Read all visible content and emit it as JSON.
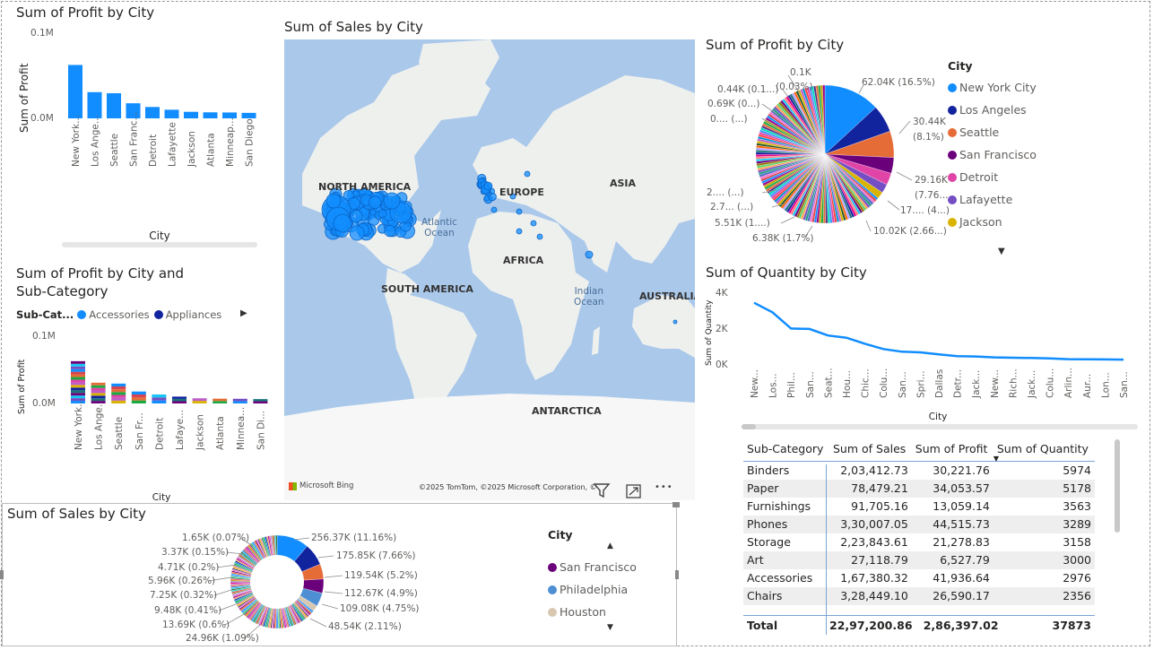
{
  "colors": {
    "accent": "#118dff",
    "navy": "#12239e",
    "orange": "#e66c37",
    "purple": "#6b007b",
    "pink": "#e044a7",
    "violet": "#744ec2",
    "gold": "#d9b300",
    "blue2": "#4e8fd4",
    "beige": "#d8c7b0",
    "map_water": "#aac8ea",
    "map_land": "#eef0ee"
  },
  "v1": {
    "title": "Sum of Profit by City",
    "ylabel": "Sum of Profit",
    "xlabel": "City",
    "ticks": [
      "0.1M",
      "0.0M"
    ]
  },
  "v2": {
    "title": "Sum of Sales by City",
    "labels": [
      "NORTH AMERICA",
      "EUROPE",
      "ASIA",
      "AFRICA",
      "SOUTH AMERICA",
      "ANTARCTICA",
      "AUSTRALIA",
      "Atlantic",
      "Ocean",
      "Indian",
      "Ocean"
    ],
    "bing": "Microsoft Bing",
    "attribution": "©2025 TomTom, ©2025 Microsoft Corporation, ©",
    "more": "•••"
  },
  "v3": {
    "title": "Sum of Profit by City",
    "legend_title": "City",
    "legend": [
      {
        "name": "New York City",
        "color": "#118dff"
      },
      {
        "name": "Los Angeles",
        "color": "#12239e"
      },
      {
        "name": "Seattle",
        "color": "#e66c37"
      },
      {
        "name": "San Francisco",
        "color": "#6b007b"
      },
      {
        "name": "Detroit",
        "color": "#e044a7"
      },
      {
        "name": "Lafayette",
        "color": "#744ec2"
      },
      {
        "name": "Jackson",
        "color": "#d9b300"
      }
    ],
    "labels": [
      "62.04K (16.5%)",
      "30.44K",
      "(8.1%)",
      "29.16K",
      "(7.76...)",
      "17.... (4...)",
      "10.02K (2.66...)",
      "6.38K (1.7%)",
      "5.51K (1....)",
      "2.7... (...)",
      "2.... (...)",
      "0.... (...)",
      "0.69K (0...)",
      "0.44K (0.1...)",
      "(0.03%)",
      "0.1K"
    ]
  },
  "v4": {
    "title": "Sum of Profit by City and Sub-Category",
    "legend_label": "Sub-Cat...",
    "legend": [
      {
        "name": "Accessories",
        "color": "#118dff"
      },
      {
        "name": "Appliances",
        "color": "#12239e"
      }
    ],
    "ylabel": "Sum of Profit",
    "xlabel": "City",
    "ticks": [
      "0.1M",
      "0.0M"
    ]
  },
  "v5": {
    "title": "Sum of Quantity by City",
    "ylabel": "Sum of Quantity",
    "xlabel": "City",
    "ticks": [
      "4K",
      "2K",
      "0K"
    ]
  },
  "v6": {
    "title": "Sum of Sales by City",
    "legend_title": "City",
    "legend": [
      {
        "name": "San Francisco",
        "color": "#6b007b"
      },
      {
        "name": "Philadelphia",
        "color": "#4e8fd4"
      },
      {
        "name": "Houston",
        "color": "#d8c7b0"
      }
    ],
    "labels_right": [
      "256.37K (11.16%)",
      "175.85K (7.66%)",
      "119.54K (5.2%)",
      "112.67K (4.9%)",
      "109.08K (4.75%)",
      "48.54K (2.11%)"
    ],
    "labels_left": [
      "1.65K (0.07%)",
      "3.37K (0.15%)",
      "4.71K (0.2%)",
      "5.96K (0.26%)",
      "7.25K (0.32%)",
      "9.48K (0.41%)",
      "13.69K (0.6%)",
      "24.96K (1.09%)"
    ]
  },
  "matrix": {
    "headers": [
      "Sub-Category",
      "Sum of Sales",
      "Sum of Profit",
      "Sum of Quantity"
    ],
    "rows": [
      [
        "Binders",
        "2,03,412.73",
        "30,221.76",
        "5974"
      ],
      [
        "Paper",
        "78,479.21",
        "34,053.57",
        "5178"
      ],
      [
        "Furnishings",
        "91,705.16",
        "13,059.14",
        "3563"
      ],
      [
        "Phones",
        "3,30,007.05",
        "44,515.73",
        "3289"
      ],
      [
        "Storage",
        "2,23,843.61",
        "21,278.83",
        "3158"
      ],
      [
        "Art",
        "27,118.79",
        "6,527.79",
        "3000"
      ],
      [
        "Accessories",
        "1,67,380.32",
        "41,936.64",
        "2976"
      ],
      [
        "Chairs",
        "3,28,449.10",
        "26,590.17",
        "2356"
      ]
    ],
    "total": [
      "Total",
      "22,97,200.86",
      "2,86,397.02",
      "37873"
    ]
  },
  "chart_data": [
    {
      "type": "bar",
      "title": "Sum of Profit by City",
      "xlabel": "City",
      "ylabel": "Sum of Profit",
      "categories": [
        "New York...",
        "Los Ange...",
        "Seattle",
        "San Franc...",
        "Detroit",
        "Lafayette",
        "Jackson",
        "Atlanta",
        "Minneap...",
        "San Diego"
      ],
      "values": [
        62036,
        30440,
        29156,
        17507,
        13181,
        10018,
        7581,
        6994,
        6824,
        6377
      ],
      "ylim": [
        0,
        100000
      ]
    },
    {
      "type": "bar",
      "title": "Sum of Profit by City and Sub-Category",
      "xlabel": "City",
      "ylabel": "Sum of Profit",
      "categories": [
        "New York...",
        "Los Ange...",
        "Seattle",
        "San Fr...",
        "Detroit",
        "Lafaye...",
        "Jackson",
        "Atlanta",
        "Minnea...",
        "San Di..."
      ],
      "values": [
        62036,
        30440,
        29156,
        17507,
        13181,
        10018,
        7581,
        6994,
        6824,
        6377
      ],
      "ylim": [
        0,
        100000
      ]
    },
    {
      "type": "line",
      "title": "Sum of Quantity by City",
      "xlabel": "City",
      "ylabel": "Sum of Quantity",
      "categories": [
        "New...",
        "Los...",
        "Phil...",
        "San...",
        "Seat...",
        "Hou...",
        "Chic...",
        "Colu...",
        "San...",
        "Spri...",
        "Dallas",
        "Detr...",
        "Jack...",
        "New...",
        "Rich...",
        "Jack...",
        "Colu...",
        "Arlin...",
        "Aur...",
        "Lon...",
        "San..."
      ],
      "values": [
        3417,
        2879,
        1981,
        1956,
        1590,
        1466,
        1132,
        836,
        683,
        649,
        541,
        436,
        420,
        368,
        352,
        334,
        316,
        268,
        262,
        255,
        247
      ],
      "ylim": [
        0,
        4000
      ]
    },
    {
      "type": "pie",
      "title": "Sum of Profit by City",
      "categories": [
        "New York City",
        "Los Angeles",
        "Seattle",
        "San Francisco",
        "Detroit",
        "Lafayette",
        "Jackson"
      ],
      "values": [
        62040,
        30440,
        29160,
        17500,
        13180,
        10020,
        7580
      ]
    },
    {
      "type": "pie",
      "title": "Sum of Sales by City",
      "categories": [
        "New York City",
        "Los Angeles",
        "Seattle",
        "San Francisco",
        "Philadelphia",
        "Houston"
      ],
      "values": [
        256370,
        175850,
        119540,
        112670,
        109080,
        48540
      ]
    }
  ]
}
